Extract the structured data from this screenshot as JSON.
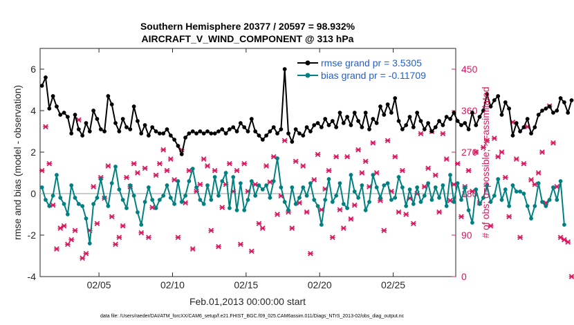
{
  "chart_data": {
    "type": "line",
    "title": "Southern Hemisphere 20377 / 20597 = 98.932%",
    "subtitle": "AIRCRAFT_V_WIND_COMPONENT @ 313 hPa",
    "xlabel": "Feb.01,2013 00:00:00 start",
    "ylabel_left": "rmse and bias (model - observation)",
    "ylabel_right": "# of obs: o=possible; ×=assimilated",
    "footer": "data file: /Users/raeder/DAI/ATM_forcXX/CAM6_setup/f.e21.FHIST_BGC.f09_025.CAM6assim.011/Diags_NTrS_2013-02/obs_diag_output.nc",
    "x_range_days": [
      1.0,
      29.25
    ],
    "ylim_left": [
      -4,
      7
    ],
    "ylim_right": [
      0,
      495
    ],
    "x_ticks": [
      {
        "day": 5,
        "label": "02/05"
      },
      {
        "day": 10,
        "label": "02/10"
      },
      {
        "day": 15,
        "label": "02/15"
      },
      {
        "day": 20,
        "label": "02/20"
      },
      {
        "day": 25,
        "label": "02/25"
      }
    ],
    "y_left_ticks": [
      {
        "value": -4,
        "label": "-4"
      },
      {
        "value": -2,
        "label": "-2"
      },
      {
        "value": 0,
        "label": "0"
      },
      {
        "value": 2,
        "label": "2"
      },
      {
        "value": 4,
        "label": "4"
      },
      {
        "value": 6,
        "label": "6"
      }
    ],
    "y_right_ticks": [
      {
        "value": 0,
        "label": "0"
      },
      {
        "value": 90,
        "label": "90"
      },
      {
        "value": 180,
        "label": "180"
      },
      {
        "value": 270,
        "label": "270"
      },
      {
        "value": 360,
        "label": "360"
      },
      {
        "value": 450,
        "label": "450"
      }
    ],
    "legend": {
      "position": "top-right",
      "entries": [
        {
          "label": "rmse grand pr = 3.5305",
          "color": "#000000"
        },
        {
          "label": "bias grand pr = -0.11709",
          "color": "#008080"
        }
      ]
    },
    "colors": {
      "rmse": "#000000",
      "bias": "#008080",
      "obs": "#d9185e",
      "zero_line": "#bbbbbb"
    },
    "x_start_day": 1.125,
    "x_step_day": 0.25,
    "series": [
      {
        "name": "rmse",
        "values": [
          5.2,
          5.6,
          4.1,
          4.7,
          4.2,
          3.8,
          3.9,
          3.7,
          2.9,
          3.8,
          3.1,
          2.8,
          3.4,
          3.0,
          4.0,
          3.6,
          3.1,
          3.0,
          4.7,
          4.3,
          3.4,
          3.0,
          3.6,
          3.2,
          3.1,
          4.2,
          3.5,
          2.9,
          3.3,
          2.8,
          3.2,
          3.0,
          2.9,
          2.9,
          3.1,
          2.8,
          2.6,
          2.3,
          1.9,
          2.7,
          2.9,
          3.0,
          2.9,
          3.0,
          2.9,
          3.0,
          2.9,
          2.9,
          3.0,
          3.1,
          2.9,
          3.1,
          3.2,
          3.0,
          3.4,
          3.2,
          3.0,
          3.6,
          3.0,
          2.8,
          2.6,
          2.8,
          3.0,
          3.2,
          2.9,
          3.1,
          6.0,
          2.9,
          2.5,
          3.1,
          2.9,
          2.8,
          3.2,
          3.0,
          3.3,
          3.4,
          3.2,
          3.6,
          3.3,
          3.5,
          3.2,
          3.9,
          3.4,
          3.7,
          3.3,
          3.9,
          3.5,
          3.2,
          3.9,
          3.1,
          3.6,
          3.4,
          4.2,
          3.8,
          4.3,
          3.9,
          4.6,
          3.5,
          3.1,
          3.3,
          3.7,
          3.2,
          3.9,
          3.5,
          3.1,
          3.4,
          3.0,
          3.2,
          3.5,
          3.3,
          3.7,
          3.6,
          3.9,
          3.5,
          3.3,
          3.4,
          3.1,
          3.9,
          3.3,
          3.7,
          4.0,
          4.8,
          4.2,
          4.5,
          4.7,
          3.8,
          4.4,
          4.1,
          2.8,
          3.4,
          3.0,
          3.2,
          3.6,
          2.9,
          3.2,
          3.8,
          4.0,
          4.1,
          4.2,
          3.9,
          4.0,
          4.6,
          4.4,
          3.9,
          4.5
        ]
      },
      {
        "name": "bias",
        "values": [
          0.3,
          -0.3,
          -0.6,
          -0.1,
          0.9,
          -0.2,
          -0.5,
          -1.0,
          0.4,
          -0.2,
          -0.5,
          -0.6,
          -1.2,
          -2.4,
          -0.5,
          -0.2,
          0.7,
          -0.2,
          -0.6,
          0.5,
          1.3,
          0.2,
          -0.3,
          -0.7,
          0.4,
          -0.1,
          -0.9,
          -1.5,
          -0.4,
          0.3,
          -0.3,
          -0.7,
          -0.3,
          -0.1,
          0.4,
          -0.2,
          -0.5,
          0.6,
          -0.4,
          -0.1,
          0.6,
          1.2,
          0.3,
          -0.3,
          -0.5,
          0.4,
          -0.3,
          0.8,
          -0.1,
          0.6,
          1.0,
          -0.7,
          0.8,
          -0.8,
          0.5,
          -0.8,
          -0.3,
          0.6,
          -0.1,
          0.4,
          0.2,
          0.4,
          -0.2,
          0.6,
          1.7,
          0.3,
          -0.4,
          -0.8,
          0.3,
          -0.5,
          -0.2,
          0.3,
          -0.1,
          0.5,
          -0.3,
          -0.6,
          -1.5,
          -0.3,
          0.7,
          -0.4,
          -0.1,
          0.5,
          -0.5,
          -0.7,
          0.9,
          0.1,
          -0.2,
          0.4,
          -0.8,
          -0.4,
          0.9,
          0.3,
          -0.2,
          0.4,
          0.5,
          -0.3,
          -0.2,
          0.8,
          0.3,
          -0.6,
          0.2,
          -0.5,
          0.3,
          -0.4,
          -0.1,
          0.5,
          -0.3,
          0.3,
          -0.2,
          0.4,
          -0.6,
          0.9,
          -0.4,
          0.5,
          -0.3,
          0.3,
          -0.8,
          -1.4,
          0.2,
          -0.5,
          -0.2,
          0.4,
          -0.4,
          -0.1,
          0.7,
          -0.3,
          0.2,
          -0.6,
          0.4,
          0.1,
          0.1,
          0.0,
          -0.6,
          -1.2,
          -0.6,
          0.5,
          -0.4,
          -0.6,
          -0.3,
          0.3,
          -0.3,
          0.6,
          -1.5
        ]
      },
      {
        "name": "obs_assimilated",
        "values": [
          230,
          325,
          245,
          155,
          60,
          105,
          110,
          70,
          80,
          100,
          340,
          40,
          50,
          100,
          195,
          115,
          215,
          170,
          240,
          130,
          70,
          85,
          110,
          215,
          195,
          245,
          225,
          95,
          235,
          85,
          150,
          220,
          245,
          275,
          230,
          255,
          210,
          85,
          275,
          160,
          230,
          60,
          185,
          200,
          255,
          240,
          100,
          230,
          65,
          150,
          200,
          245,
          185,
          230,
          70,
          245,
          185,
          55,
          200,
          115,
          105,
          240,
          205,
          260,
          135,
          175,
          295,
          140,
          105,
          250,
          160,
          240,
          140,
          50,
          210,
          265,
          145,
          190,
          230,
          85,
          260,
          145,
          105,
          260,
          125,
          155,
          275,
          225,
          250,
          195,
          290,
          225,
          165,
          100,
          295,
          185,
          260,
          140,
          230,
          135,
          170,
          115,
          180,
          310,
          195,
          235,
          315,
          220,
          140,
          310,
          255,
          165,
          200,
          245,
          130,
          195,
          230,
          185,
          270,
          160,
          280,
          295,
          110,
          300,
          260,
          270,
          215,
          130,
          335,
          255,
          85,
          245,
          325,
          210,
          200,
          225,
          270,
          160,
          370,
          290,
          195,
          85,
          80,
          75,
          0
        ]
      }
    ]
  }
}
